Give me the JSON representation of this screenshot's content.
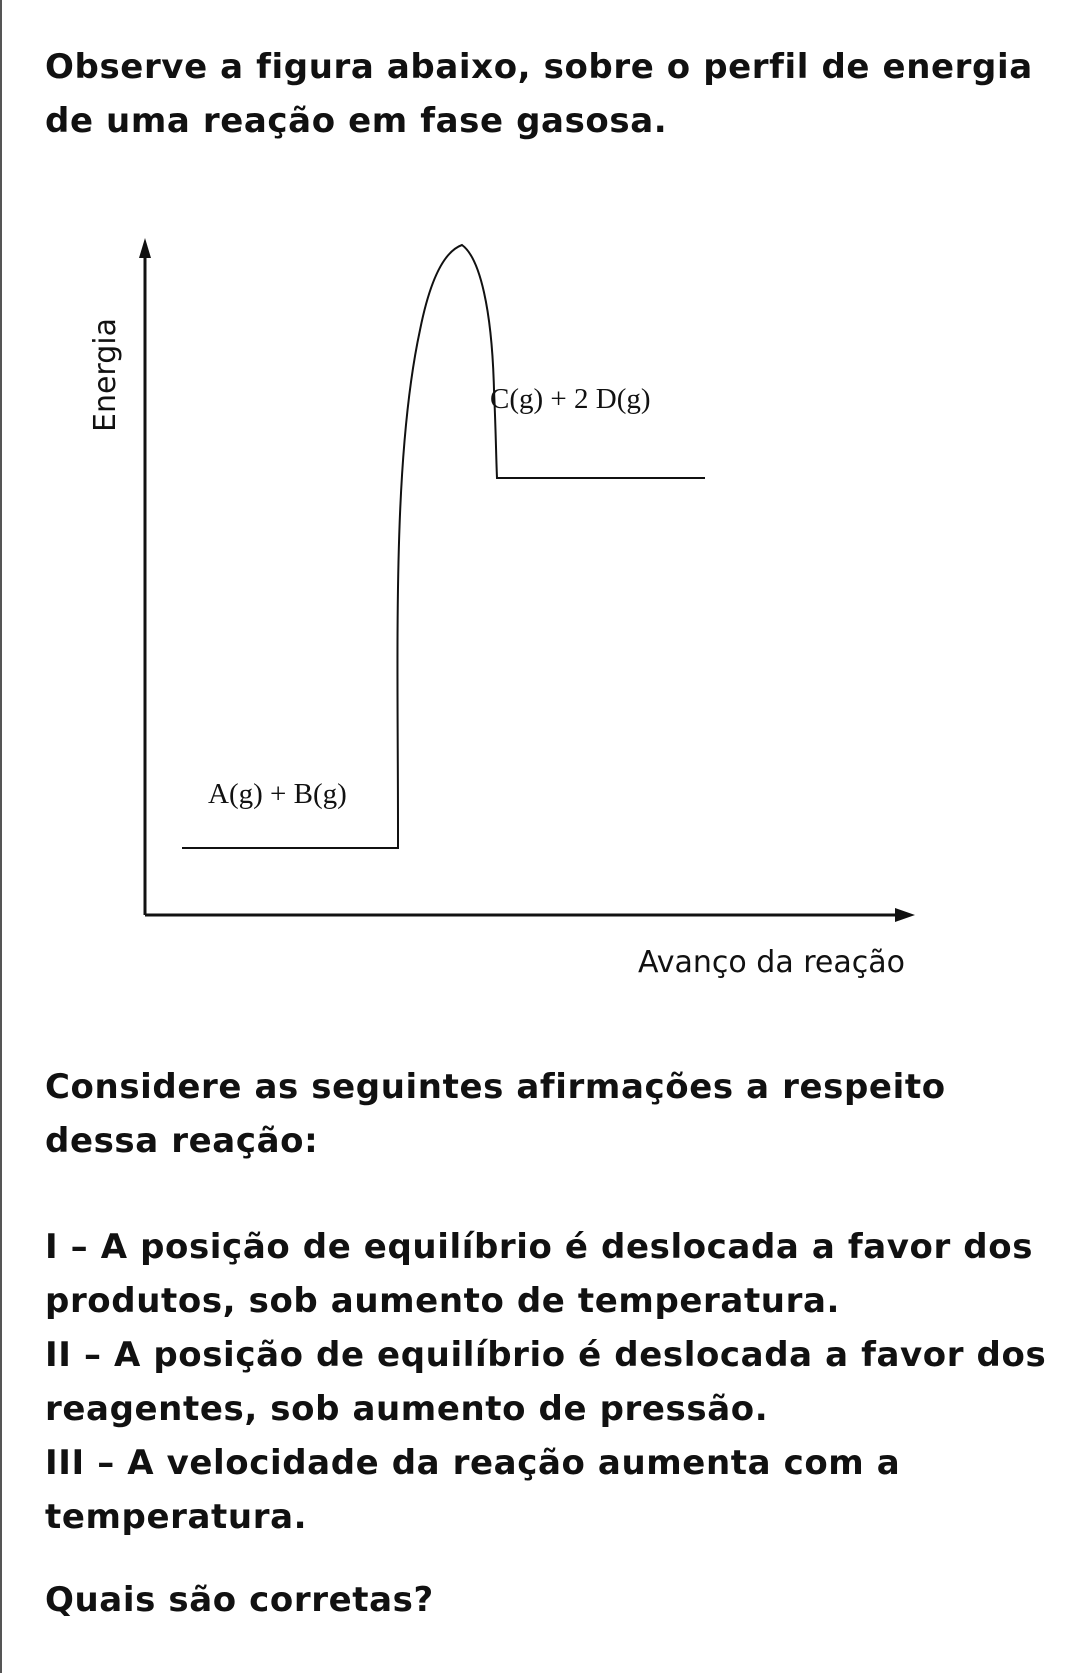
{
  "intro": "Observe a figura abaixo, sobre o perfil de energia de uma reação em fase gasosa.",
  "diagram": {
    "y_axis_label": "Energia",
    "x_axis_label": "Avanço da reação",
    "reactants_label": "A(g) + B(g)",
    "products_label": "C(g) + 2 D(g)"
  },
  "consider": "Considere as seguintes afirmações a respeito dessa reação:",
  "statements": [
    "I  – A posição de equilíbrio é deslocada a favor dos produtos, sob aumento de temperatura.",
    "II – A posição de equilíbrio é deslocada a favor dos reagentes, sob aumento de pressão.",
    "III – A velocidade da reação aumenta com a temperatura."
  ],
  "question": "Quais são corretas?"
}
